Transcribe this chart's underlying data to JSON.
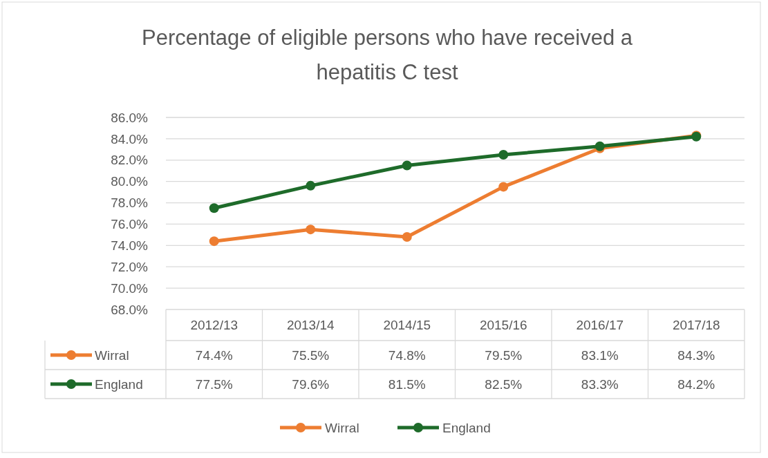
{
  "chart_data": {
    "type": "line",
    "title": "Percentage of eligible persons who have received a hepatitis C test",
    "categories": [
      "2012/13",
      "2013/14",
      "2014/15",
      "2015/16",
      "2016/17",
      "2017/18"
    ],
    "series": [
      {
        "name": "Wirral",
        "color": "#ed7d31",
        "values": [
          74.4,
          75.5,
          74.8,
          79.5,
          83.1,
          84.3
        ],
        "value_labels": [
          "74.4%",
          "75.5%",
          "74.8%",
          "79.5%",
          "83.1%",
          "84.3%"
        ]
      },
      {
        "name": "England",
        "color": "#1e6b2a",
        "values": [
          77.5,
          79.6,
          81.5,
          82.5,
          83.3,
          84.2
        ],
        "value_labels": [
          "77.5%",
          "79.6%",
          "81.5%",
          "82.5%",
          "83.3%",
          "84.2%"
        ]
      }
    ],
    "ylim": [
      68,
      86
    ],
    "yticks": [
      {
        "value": 68,
        "label": "68.0%"
      },
      {
        "value": 70,
        "label": "70.0%"
      },
      {
        "value": 72,
        "label": "72.0%"
      },
      {
        "value": 74,
        "label": "74.0%"
      },
      {
        "value": 76,
        "label": "76.0%"
      },
      {
        "value": 78,
        "label": "78.0%"
      },
      {
        "value": 80,
        "label": "80.0%"
      },
      {
        "value": 82,
        "label": "82.0%"
      },
      {
        "value": 84,
        "label": "84.0%"
      },
      {
        "value": 86,
        "label": "86.0%"
      }
    ],
    "grid": "y",
    "legend": "bottom",
    "marker": "circle",
    "line_style": "solid"
  }
}
